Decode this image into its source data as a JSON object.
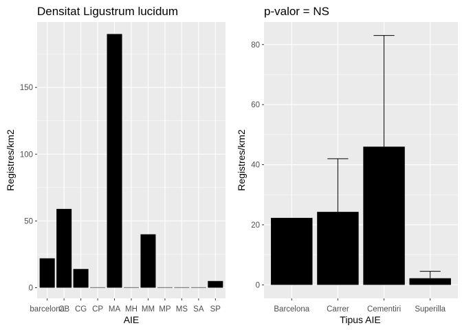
{
  "colors": {
    "panel": "#ebebeb",
    "grid_major": "#ffffff",
    "bar": "#000000",
    "tick_text": "#4d4d4d",
    "tick_mark": "#333333"
  },
  "chart_data": [
    {
      "type": "bar",
      "title": "Densitat Ligustrum lucidum",
      "xlabel": "AIE",
      "ylabel": "Registres/km2",
      "categories": [
        "barcelona",
        "CB",
        "CG",
        "CP",
        "MA",
        "MH",
        "MM",
        "MP",
        "MS",
        "SA",
        "SP"
      ],
      "values": [
        22,
        59,
        14,
        0.3,
        190,
        0.3,
        40,
        0.3,
        0.3,
        0.3,
        5
      ],
      "ylim": [
        -8,
        199
      ],
      "yticks": [
        0,
        50,
        100,
        150
      ],
      "grid": true
    },
    {
      "type": "bar",
      "title": "p-valor = NS",
      "xlabel": "Tipus AIE",
      "ylabel": "Registres/km2",
      "categories": [
        "Barcelona",
        "Carrer",
        "Cementiri",
        "Superilla"
      ],
      "values": [
        22.3,
        24.3,
        46,
        2.2
      ],
      "error_upper": [
        null,
        42,
        83,
        4.5
      ],
      "ylim": [
        -4.5,
        87.5
      ],
      "yticks": [
        0,
        20,
        40,
        60,
        80
      ],
      "grid": true
    }
  ]
}
